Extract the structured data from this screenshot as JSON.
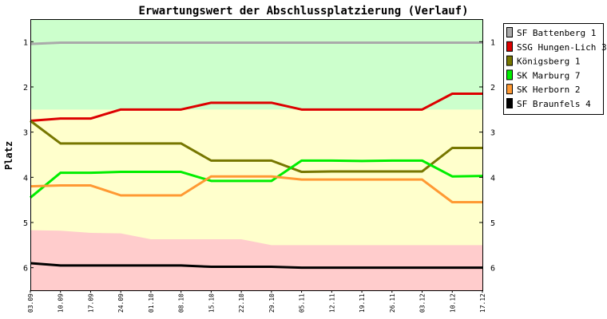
{
  "chart_data": {
    "type": "line",
    "title": "Erwartungswert der Abschlussplatzierung (Verlauf)",
    "xlabel": "",
    "ylabel": "Platz",
    "categories": [
      "03.09",
      "10.09",
      "17.09",
      "24.09",
      "01.10",
      "08.10",
      "15.10",
      "22.10",
      "29.10",
      "05.11",
      "12.11",
      "19.11",
      "26.11",
      "03.12",
      "10.12",
      "17.12"
    ],
    "yticks": [
      1,
      2,
      3,
      4,
      5,
      6
    ],
    "ylim": [
      0.5,
      6.5
    ],
    "y_inverted": true,
    "grid": false,
    "legend_position": "right",
    "zones": [
      {
        "name": "green",
        "color": "#ccffcc",
        "lower": [
          1.0,
          1.0,
          1.0,
          1.0,
          1.0,
          1.0,
          1.0,
          1.0,
          1.0,
          1.0,
          1.0,
          1.0,
          1.0,
          1.0,
          1.0,
          1.0
        ],
        "upper": [
          2.5,
          2.5,
          2.5,
          2.5,
          2.5,
          2.5,
          2.5,
          2.5,
          2.5,
          2.5,
          2.5,
          2.5,
          2.5,
          2.5,
          2.5,
          2.5
        ]
      },
      {
        "name": "yellow",
        "color": "#ffffcc"
      },
      {
        "name": "red",
        "color": "#ffcccc",
        "upper": [
          5.17,
          5.18,
          5.23,
          5.24,
          5.37,
          5.37,
          5.37,
          5.37,
          5.5,
          5.5,
          5.5,
          5.5,
          5.5,
          5.5,
          5.5,
          5.5
        ]
      }
    ],
    "series": [
      {
        "name": "SF Battenberg 1",
        "color": "#aaaaaa",
        "values": [
          1.05,
          1.02,
          1.02,
          1.02,
          1.02,
          1.02,
          1.02,
          1.02,
          1.02,
          1.02,
          1.02,
          1.02,
          1.02,
          1.02,
          1.02,
          1.02
        ]
      },
      {
        "name": "SSG Hungen-Lich 3",
        "color": "#dd0000",
        "values": [
          2.75,
          2.7,
          2.7,
          2.5,
          2.5,
          2.5,
          2.35,
          2.35,
          2.35,
          2.5,
          2.5,
          2.5,
          2.5,
          2.5,
          2.15,
          2.15
        ]
      },
      {
        "name": "Königsberg 1",
        "color": "#777700",
        "values": [
          2.75,
          3.25,
          3.25,
          3.25,
          3.25,
          3.25,
          3.63,
          3.63,
          3.63,
          3.88,
          3.87,
          3.87,
          3.87,
          3.87,
          3.35,
          3.35
        ]
      },
      {
        "name": "SK Marburg 7",
        "color": "#00ee00",
        "values": [
          4.45,
          3.9,
          3.9,
          3.88,
          3.88,
          3.88,
          4.08,
          4.08,
          4.08,
          3.63,
          3.63,
          3.64,
          3.63,
          3.63,
          3.98,
          3.97
        ]
      },
      {
        "name": "SK Herborn 2",
        "color": "#ff9933",
        "values": [
          4.2,
          4.18,
          4.18,
          4.4,
          4.4,
          4.4,
          3.98,
          3.98,
          3.98,
          4.05,
          4.05,
          4.05,
          4.05,
          4.05,
          4.55,
          4.55
        ]
      },
      {
        "name": "SF Braunfels 4",
        "color": "#000000",
        "values": [
          5.9,
          5.95,
          5.95,
          5.95,
          5.95,
          5.95,
          5.98,
          5.98,
          5.98,
          6.0,
          6.0,
          6.0,
          6.0,
          6.0,
          6.0,
          6.0
        ]
      }
    ]
  }
}
